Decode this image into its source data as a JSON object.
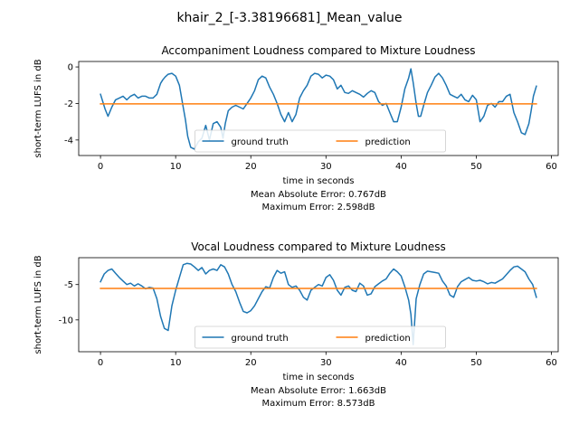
{
  "figure": {
    "suptitle": "khair_2_[-3.38196681]_Mean_value"
  },
  "chart_data": [
    {
      "type": "line",
      "title": "Accompaniment Loudness compared to Mixture Loudness",
      "xlabel": "time in seconds",
      "ylabel": "short-term LUFS in dB",
      "notes": [
        "Mean Absolute Error: 0.767dB",
        "Maximum Error: 2.598dB"
      ],
      "xlim": [
        -2.9,
        60.9
      ],
      "ylim": [
        -4.85,
        0.3
      ],
      "xticks": [
        0,
        10,
        20,
        30,
        40,
        50,
        60
      ],
      "yticks": [
        0,
        -2,
        -4
      ],
      "legend": {
        "placement": "lower center",
        "columns": 2
      },
      "series": [
        {
          "name": "ground truth",
          "color": "#1f77b4",
          "x": [
            0,
            0.3,
            0.6,
            1,
            1.5,
            2,
            2.5,
            3,
            3.5,
            4,
            4.5,
            5,
            5.5,
            6,
            6.5,
            7,
            7.5,
            8,
            8.3,
            8.6,
            9,
            9.5,
            10,
            10.5,
            11,
            11.3,
            11.6,
            12,
            12.5,
            13,
            13.5,
            14,
            14.5,
            15,
            15.5,
            16,
            16.3,
            16.6,
            17,
            17.5,
            18,
            18.5,
            19,
            19.5,
            20,
            20.5,
            21,
            21.5,
            22,
            22.5,
            23,
            23.5,
            24,
            24.5,
            25,
            25.5,
            26,
            26.5,
            27,
            27.5,
            28,
            28.5,
            29,
            29.5,
            30,
            30.5,
            31,
            31.5,
            32,
            32.5,
            33,
            33.5,
            34,
            34.5,
            35,
            35.5,
            36,
            36.5,
            37,
            37.5,
            38,
            38.5,
            39,
            39.5,
            40,
            40.5,
            41,
            41.3,
            41.6,
            42,
            42.3,
            42.6,
            43,
            43.5,
            44,
            44.5,
            45,
            45.5,
            46,
            46.5,
            47,
            47.5,
            48,
            48.5,
            49,
            49.5,
            50,
            50.5,
            51,
            51.5,
            52,
            52.5,
            53,
            53.5,
            54,
            54.5,
            55,
            55.5,
            56,
            56.5,
            57,
            57.3,
            57.6,
            58
          ],
          "y": [
            -1.5,
            -1.9,
            -2.3,
            -2.7,
            -2.2,
            -1.8,
            -1.7,
            -1.6,
            -1.8,
            -1.6,
            -1.5,
            -1.7,
            -1.6,
            -1.6,
            -1.7,
            -1.7,
            -1.5,
            -0.9,
            -0.7,
            -0.55,
            -0.4,
            -0.35,
            -0.5,
            -1.0,
            -2.2,
            -2.9,
            -3.8,
            -4.4,
            -4.5,
            -4.1,
            -3.9,
            -3.2,
            -4.0,
            -3.1,
            -3.0,
            -3.3,
            -3.9,
            -3.1,
            -2.4,
            -2.2,
            -2.1,
            -2.2,
            -2.3,
            -2.0,
            -1.7,
            -1.3,
            -0.7,
            -0.5,
            -0.6,
            -1.1,
            -1.5,
            -2.0,
            -2.6,
            -3.0,
            -2.5,
            -3.0,
            -2.6,
            -1.7,
            -1.3,
            -1.0,
            -0.5,
            -0.35,
            -0.4,
            -0.6,
            -0.45,
            -0.5,
            -0.7,
            -1.2,
            -1.0,
            -1.4,
            -1.45,
            -1.3,
            -1.4,
            -1.5,
            -1.65,
            -1.45,
            -1.3,
            -1.4,
            -1.9,
            -2.1,
            -2.0,
            -2.5,
            -3.0,
            -3.0,
            -2.2,
            -1.2,
            -0.6,
            -0.1,
            -0.85,
            -2.0,
            -2.7,
            -2.7,
            -2.1,
            -1.4,
            -1.0,
            -0.55,
            -0.35,
            -0.6,
            -1.0,
            -1.5,
            -1.6,
            -1.7,
            -1.5,
            -1.8,
            -1.9,
            -1.55,
            -1.8,
            -3.0,
            -2.7,
            -2.1,
            -2.0,
            -2.2,
            -1.9,
            -1.9,
            -1.6,
            -1.5,
            -2.5,
            -3.0,
            -3.6,
            -3.7,
            -3.1,
            -2.4,
            -1.6,
            -1.05
          ]
        },
        {
          "name": "prediction",
          "color": "#ff7f0e",
          "x": [
            0,
            58
          ],
          "y": [
            -2.02,
            -2.02
          ]
        }
      ]
    },
    {
      "type": "line",
      "title": "Vocal Loudness compared to Mixture Loudness",
      "xlabel": "time in seconds",
      "ylabel": "short-term LUFS in dB",
      "notes": [
        "Mean Absolute Error: 1.663dB",
        "Maximum Error: 8.573dB"
      ],
      "xlim": [
        -2.9,
        60.9
      ],
      "ylim": [
        -14.5,
        -1.2
      ],
      "xticks": [
        0,
        10,
        20,
        30,
        40,
        50,
        60
      ],
      "yticks": [
        -5,
        -10
      ],
      "legend": {
        "placement": "lower center",
        "columns": 2
      },
      "series": [
        {
          "name": "ground truth",
          "color": "#1f77b4",
          "x": [
            0,
            0.5,
            1,
            1.5,
            2,
            2.5,
            3,
            3.5,
            4,
            4.5,
            5,
            5.5,
            6,
            6.5,
            7,
            7.5,
            8,
            8.5,
            9,
            9.5,
            10,
            10.5,
            11,
            11.5,
            12,
            12.5,
            13,
            13.5,
            14,
            14.5,
            15,
            15.5,
            16,
            16.5,
            17,
            17.5,
            18,
            18.5,
            19,
            19.5,
            20,
            20.5,
            21,
            21.5,
            22,
            22.5,
            23,
            23.5,
            24,
            24.5,
            25,
            25.5,
            26,
            26.5,
            27,
            27.5,
            28,
            28.5,
            29,
            29.5,
            30,
            30.5,
            31,
            31.5,
            32,
            32.5,
            33,
            33.5,
            34,
            34.5,
            35,
            35.5,
            36,
            36.5,
            37,
            37.5,
            38,
            38.5,
            39,
            39.5,
            40,
            40.5,
            41,
            41.3,
            41.6,
            42,
            42.5,
            43,
            43.5,
            44,
            44.5,
            45,
            45.5,
            46,
            46.5,
            47,
            47.5,
            48,
            48.5,
            49,
            49.5,
            50,
            50.5,
            51,
            51.5,
            52,
            52.5,
            53,
            53.5,
            54,
            54.5,
            55,
            55.5,
            56,
            56.5,
            57,
            57.5,
            58
          ],
          "y": [
            -4.6,
            -3.5,
            -3.0,
            -2.8,
            -3.4,
            -4.0,
            -4.5,
            -5.0,
            -4.8,
            -5.2,
            -4.9,
            -5.2,
            -5.6,
            -5.4,
            -5.5,
            -7.0,
            -9.5,
            -11.2,
            -11.5,
            -8.0,
            -5.8,
            -4.0,
            -2.2,
            -2.0,
            -2.1,
            -2.5,
            -3.0,
            -2.6,
            -3.5,
            -3.0,
            -2.8,
            -3.0,
            -2.2,
            -2.5,
            -3.5,
            -5.0,
            -6.0,
            -7.5,
            -8.8,
            -9.0,
            -8.7,
            -8.0,
            -7.0,
            -6.0,
            -5.3,
            -5.5,
            -4.0,
            -3.0,
            -3.4,
            -3.2,
            -5.0,
            -5.4,
            -5.2,
            -5.8,
            -6.8,
            -7.2,
            -5.8,
            -5.4,
            -5.0,
            -5.2,
            -4.0,
            -3.6,
            -4.4,
            -5.8,
            -6.5,
            -5.4,
            -5.2,
            -5.8,
            -6.0,
            -4.8,
            -5.2,
            -6.5,
            -6.3,
            -5.3,
            -4.9,
            -4.5,
            -4.2,
            -3.4,
            -2.8,
            -3.2,
            -3.8,
            -5.3,
            -7.2,
            -9.2,
            -13.5,
            -7.0,
            -5.0,
            -3.5,
            -3.1,
            -3.2,
            -3.3,
            -3.4,
            -4.5,
            -5.2,
            -6.5,
            -6.8,
            -5.3,
            -4.6,
            -4.3,
            -4.0,
            -4.4,
            -4.5,
            -4.4,
            -4.6,
            -4.9,
            -4.7,
            -4.8,
            -4.5,
            -4.2,
            -3.6,
            -3.0,
            -2.5,
            -2.4,
            -2.8,
            -3.2,
            -4.2,
            -5.0,
            -6.8
          ]
        },
        {
          "name": "prediction",
          "color": "#ff7f0e",
          "x": [
            0,
            58
          ],
          "y": [
            -5.55,
            -5.55
          ]
        }
      ]
    }
  ]
}
